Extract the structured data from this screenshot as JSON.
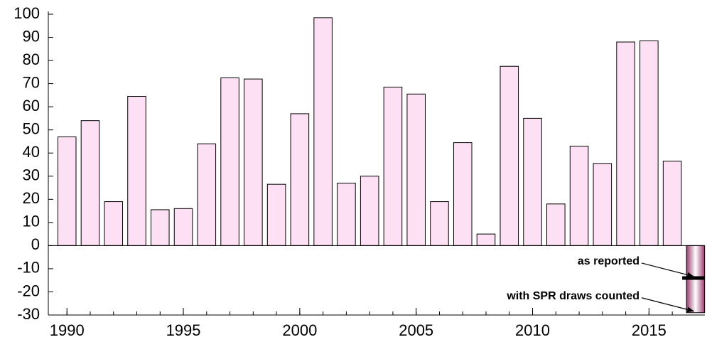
{
  "chart_data": {
    "type": "bar",
    "x": [
      1990,
      1991,
      1992,
      1993,
      1994,
      1995,
      1996,
      1997,
      1998,
      1999,
      2000,
      2001,
      2002,
      2003,
      2004,
      2005,
      2006,
      2007,
      2008,
      2009,
      2010,
      2011,
      2012,
      2013,
      2014,
      2015,
      2016
    ],
    "values": [
      47,
      54,
      19,
      64.5,
      15.5,
      16,
      44,
      72.5,
      72,
      26.5,
      57,
      98.5,
      27,
      30,
      68.5,
      65.5,
      19,
      44.5,
      5,
      77.5,
      55,
      18,
      43,
      35.5,
      88,
      88.5,
      36.5
    ],
    "color": "#fde0f3",
    "annotations": [
      {
        "text": "as reported",
        "x": 2017,
        "value": -14
      },
      {
        "text": "with SPR draws counted",
        "x": 2017,
        "value": -29
      }
    ],
    "highlight_color": "#9b3a6e",
    "xlim": [
      1989.2,
      2017.4
    ],
    "xticks": [
      1990,
      1995,
      2000,
      2005,
      2010,
      2015
    ],
    "ylim": [
      -30,
      100
    ],
    "yticks": [
      -30,
      -20,
      -10,
      0,
      10,
      20,
      30,
      40,
      50,
      60,
      70,
      80,
      90,
      100
    ],
    "grid": false
  }
}
